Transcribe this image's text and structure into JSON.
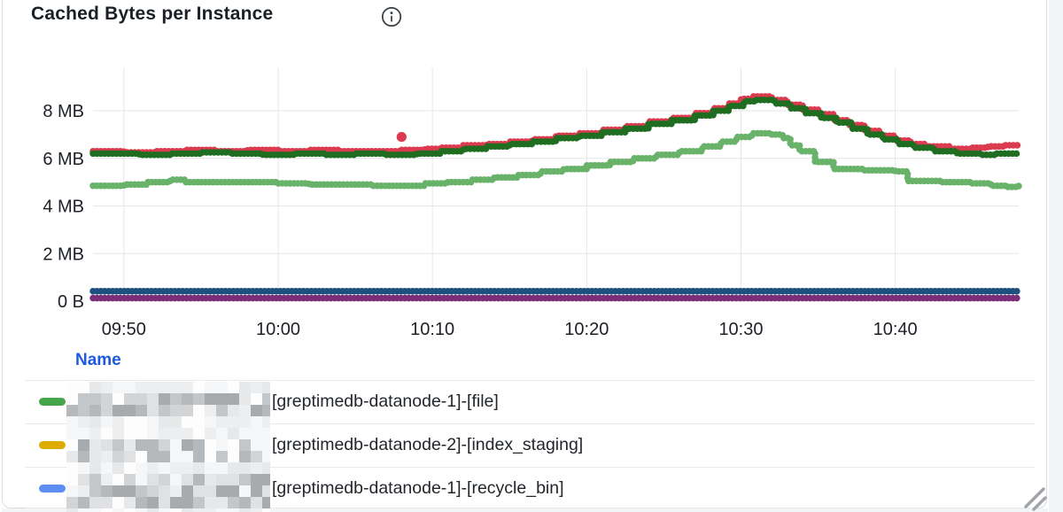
{
  "panel": {
    "title": "Cached Bytes per Instance",
    "info_icon": "info-icon"
  },
  "colors": {
    "grid": "#e5e6e8",
    "axis_text": "#1d2127",
    "legend_header_blue": "#1e5ae0",
    "card_border": "#d9dcdf",
    "page_gutter": "#f3f4f6",
    "redaction_light": [
      "#fdfdfd",
      "#f5f6f7",
      "#edeef0",
      "#e6e8e9"
    ],
    "redaction_dark": [
      "#b6b9bb",
      "#c4c7c9",
      "#a8abad",
      "#d2d4d6",
      "#dfe1e3"
    ]
  },
  "chart_data": {
    "type": "line",
    "style": "dotted-step-scatter",
    "title": "Cached Bytes per Instance",
    "xlabel": "",
    "ylabel": "",
    "grid": true,
    "legend_position": "bottom-table",
    "x_axis": {
      "unit": "time",
      "range_minutes": [
        0,
        60
      ],
      "ticks": [
        {
          "label": "09:50",
          "t": 2
        },
        {
          "label": "10:00",
          "t": 12
        },
        {
          "label": "10:10",
          "t": 22
        },
        {
          "label": "10:20",
          "t": 32
        },
        {
          "label": "10:30",
          "t": 42
        },
        {
          "label": "10:40",
          "t": 52
        }
      ]
    },
    "y_axis": {
      "unit": "bytes",
      "ylim_mb": [
        0,
        9.7
      ],
      "ticks": [
        {
          "label": "0 B",
          "v": 0
        },
        {
          "label": "2 MB",
          "v": 2
        },
        {
          "label": "4 MB",
          "v": 4
        },
        {
          "label": "6 MB",
          "v": 6
        },
        {
          "label": "8 MB",
          "v": 8
        }
      ]
    },
    "series": [
      {
        "name": "series-light-green",
        "color": "#69b269",
        "points": [
          [
            0,
            4.85
          ],
          [
            2,
            4.9
          ],
          [
            3.5,
            5.0
          ],
          [
            5,
            5.1
          ],
          [
            6,
            5.0
          ],
          [
            8,
            5.0
          ],
          [
            10,
            5.0
          ],
          [
            12,
            4.95
          ],
          [
            14,
            4.9
          ],
          [
            16,
            4.9
          ],
          [
            18,
            4.85
          ],
          [
            20,
            4.85
          ],
          [
            21.5,
            4.95
          ],
          [
            23,
            5.0
          ],
          [
            24.5,
            5.1
          ],
          [
            26,
            5.2
          ],
          [
            27.5,
            5.3
          ],
          [
            29,
            5.45
          ],
          [
            30.5,
            5.55
          ],
          [
            32,
            5.7
          ],
          [
            33.5,
            5.85
          ],
          [
            35,
            6.0
          ],
          [
            36.5,
            6.15
          ],
          [
            38,
            6.3
          ],
          [
            39.5,
            6.5
          ],
          [
            40.7,
            6.7
          ],
          [
            41.7,
            6.9
          ],
          [
            42.7,
            7.05
          ],
          [
            44,
            7.0
          ],
          [
            44.7,
            6.85
          ],
          [
            45.2,
            6.55
          ],
          [
            45.8,
            6.3
          ],
          [
            46.8,
            5.85
          ],
          [
            48,
            5.55
          ],
          [
            50,
            5.5
          ],
          [
            52,
            5.45
          ],
          [
            52.8,
            5.05
          ],
          [
            55,
            5.0
          ],
          [
            57,
            4.95
          ],
          [
            58.2,
            4.85
          ],
          [
            59.3,
            4.8
          ],
          [
            60,
            4.85
          ]
        ]
      },
      {
        "name": "series-red",
        "color": "#dc3a4e",
        "points": [
          [
            0,
            6.3
          ],
          [
            2,
            6.25
          ],
          [
            4,
            6.3
          ],
          [
            6,
            6.35
          ],
          [
            8,
            6.3
          ],
          [
            10,
            6.35
          ],
          [
            12,
            6.3
          ],
          [
            14,
            6.35
          ],
          [
            16,
            6.3
          ],
          [
            18,
            6.3
          ],
          [
            20,
            6.35
          ],
          [
            21.5,
            6.4
          ],
          [
            22.5,
            6.45
          ],
          [
            24,
            6.55
          ],
          [
            25.5,
            6.6
          ],
          [
            27,
            6.7
          ],
          [
            28.5,
            6.8
          ],
          [
            30,
            6.95
          ],
          [
            31.5,
            7.05
          ],
          [
            33,
            7.2
          ],
          [
            34.5,
            7.35
          ],
          [
            36,
            7.55
          ],
          [
            37.5,
            7.7
          ],
          [
            39,
            7.9
          ],
          [
            40.2,
            8.1
          ],
          [
            41.2,
            8.3
          ],
          [
            42,
            8.5
          ],
          [
            42.8,
            8.6
          ],
          [
            44,
            8.45
          ],
          [
            45,
            8.25
          ],
          [
            46,
            8.05
          ],
          [
            47,
            7.85
          ],
          [
            48,
            7.6
          ],
          [
            49,
            7.4
          ],
          [
            50,
            7.15
          ],
          [
            51,
            6.95
          ],
          [
            52,
            6.75
          ],
          [
            53,
            6.6
          ],
          [
            54,
            6.5
          ],
          [
            55.5,
            6.4
          ],
          [
            57,
            6.45
          ],
          [
            58,
            6.5
          ],
          [
            59,
            6.55
          ],
          [
            60,
            6.55
          ]
        ]
      },
      {
        "name": "series-dark-green",
        "color": "#1f6d20",
        "points": [
          [
            0,
            6.2
          ],
          [
            3,
            6.15
          ],
          [
            5,
            6.2
          ],
          [
            7,
            6.25
          ],
          [
            9,
            6.2
          ],
          [
            11,
            6.15
          ],
          [
            13,
            6.2
          ],
          [
            15,
            6.15
          ],
          [
            17,
            6.2
          ],
          [
            19,
            6.15
          ],
          [
            21,
            6.2
          ],
          [
            22.5,
            6.3
          ],
          [
            24,
            6.4
          ],
          [
            25.5,
            6.5
          ],
          [
            27,
            6.6
          ],
          [
            28.5,
            6.7
          ],
          [
            30,
            6.85
          ],
          [
            31.5,
            6.95
          ],
          [
            33,
            7.1
          ],
          [
            34.5,
            7.25
          ],
          [
            36,
            7.45
          ],
          [
            37.5,
            7.6
          ],
          [
            39,
            7.8
          ],
          [
            40.2,
            8.0
          ],
          [
            41.2,
            8.2
          ],
          [
            42.2,
            8.4
          ],
          [
            43,
            8.45
          ],
          [
            44.2,
            8.3
          ],
          [
            45.2,
            8.1
          ],
          [
            46.2,
            7.9
          ],
          [
            47.2,
            7.7
          ],
          [
            48.2,
            7.5
          ],
          [
            49.2,
            7.25
          ],
          [
            50.2,
            7.0
          ],
          [
            51.2,
            6.8
          ],
          [
            52.2,
            6.6
          ],
          [
            53.2,
            6.45
          ],
          [
            54.5,
            6.3
          ],
          [
            56,
            6.2
          ],
          [
            57.5,
            6.15
          ],
          [
            58.5,
            6.2
          ],
          [
            60,
            6.25
          ]
        ]
      },
      {
        "name": "series-navy",
        "color": "#1d4f7f",
        "points": [
          [
            0,
            0.42
          ],
          [
            60,
            0.42
          ]
        ]
      },
      {
        "name": "series-purple",
        "color": "#7b2d78",
        "points": [
          [
            0,
            0.13
          ],
          [
            60,
            0.13
          ]
        ]
      }
    ],
    "outliers": [
      {
        "series": "series-red",
        "color": "#dc3a4e",
        "t": 20,
        "v": 6.9
      }
    ],
    "draw_order": [
      "series-purple",
      "series-navy",
      "series-light-green",
      "series-red",
      "series-dark-green"
    ]
  },
  "legend": {
    "header": "Name",
    "rows": [
      {
        "swatch_color": "#46a54b",
        "redacted_prefix": true,
        "label": "[greptimedb-datanode-1]-[file]"
      },
      {
        "swatch_color": "#dcad00",
        "redacted_prefix": true,
        "label": "[greptimedb-datanode-2]-[index_staging]"
      },
      {
        "swatch_color": "#5f8ef3",
        "redacted_prefix": true,
        "label": "[greptimedb-datanode-1]-[recycle_bin]"
      }
    ]
  }
}
